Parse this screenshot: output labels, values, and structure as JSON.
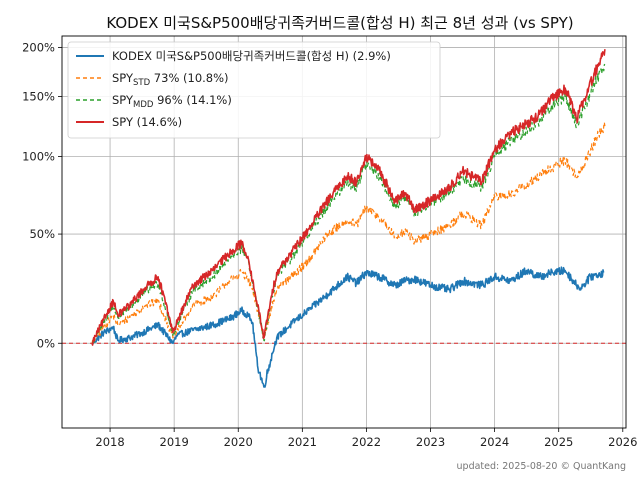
{
  "chart_data": {
    "type": "line",
    "title": "KODEX 미국S&P500배당귀족커버드콜(합성 H) 최근 8년 성과 (vs SPY)",
    "xlabel": "",
    "ylabel": "",
    "yscale": "log(1+r)",
    "grid": true,
    "legend_position": "top-left",
    "x_ticks": [
      "2018",
      "2019",
      "2020",
      "2021",
      "2022",
      "2023",
      "2024",
      "2025",
      "2026"
    ],
    "y_ticks": [
      {
        "value": 0,
        "label": "0%"
      },
      {
        "value": 50,
        "label": "50%"
      },
      {
        "value": 100,
        "label": "100%"
      },
      {
        "value": 150,
        "label": "150%"
      },
      {
        "value": 200,
        "label": "200%"
      }
    ],
    "xlim": [
      2017.25,
      2026.05
    ],
    "ylim": [
      -27,
      213
    ],
    "zero_line": {
      "value": 0,
      "color": "#d62728",
      "style": "dashed"
    },
    "series": [
      {
        "name": "KODEX 미국S&P500배당귀족커버드콜(합성 H) (2.9%)",
        "name_parts": {
          "main": "KODEX 미국S&P500배당귀족커버드콜(합성 H) (2.9%)",
          "sub": "",
          "rest": ""
        },
        "color": "#1f77b4",
        "dash": "solid",
        "width": 1.6,
        "x": [
          2017.72,
          2017.9,
          2018.05,
          2018.12,
          2018.3,
          2018.5,
          2018.75,
          2018.98,
          2019.05,
          2019.3,
          2019.6,
          2019.9,
          2020.05,
          2020.15,
          2020.22,
          2020.3,
          2020.4,
          2020.6,
          2020.9,
          2021.1,
          2021.4,
          2021.7,
          2021.85,
          2021.99,
          2022.2,
          2022.45,
          2022.6,
          2022.75,
          2023.0,
          2023.3,
          2023.5,
          2023.8,
          2024.0,
          2024.25,
          2024.5,
          2024.7,
          2024.9,
          2025.1,
          2025.28,
          2025.35,
          2025.5,
          2025.7
        ],
        "y": [
          0,
          4,
          6,
          1,
          2,
          4,
          7,
          0,
          3,
          5,
          7,
          10,
          13,
          11,
          8,
          -8,
          -15,
          2,
          9,
          13,
          20,
          28,
          25,
          30,
          28,
          24,
          26,
          27,
          24,
          22,
          26,
          24,
          28,
          26,
          31,
          28,
          30,
          31,
          24,
          23,
          28,
          30
        ]
      },
      {
        "name": "SPYSTD 73% (10.8%)",
        "name_parts": {
          "main": "SPY",
          "sub": "STD",
          "rest": " 73% (10.8%)"
        },
        "color": "#ff7f0e",
        "dash": "4,3",
        "width": 1.2,
        "x": [
          2017.72,
          2017.9,
          2018.05,
          2018.12,
          2018.3,
          2018.55,
          2018.75,
          2018.98,
          2019.3,
          2019.6,
          2019.9,
          2020.05,
          2020.15,
          2020.22,
          2020.4,
          2020.6,
          2020.9,
          2021.1,
          2021.4,
          2021.7,
          2021.85,
          2021.99,
          2022.2,
          2022.45,
          2022.6,
          2022.75,
          2023.0,
          2023.3,
          2023.5,
          2023.8,
          2024.0,
          2024.25,
          2024.5,
          2024.7,
          2024.9,
          2025.1,
          2025.28,
          2025.4,
          2025.6,
          2025.72
        ],
        "y": [
          0,
          6,
          11,
          7,
          10,
          15,
          17,
          2,
          15,
          19,
          27,
          30,
          27,
          22,
          2,
          22,
          30,
          36,
          50,
          58,
          55,
          65,
          60,
          48,
          52,
          46,
          50,
          55,
          62,
          55,
          72,
          74,
          80,
          86,
          92,
          98,
          85,
          95,
          115,
          124
        ]
      },
      {
        "name": "SPYMDD 96% (14.1%)",
        "name_parts": {
          "main": "SPY",
          "sub": "MDD",
          "rest": " 96% (14.1%)"
        },
        "color": "#2ca02c",
        "dash": "4,3",
        "width": 1.2,
        "x": [
          2017.72,
          2017.9,
          2018.05,
          2018.12,
          2018.3,
          2018.55,
          2018.75,
          2018.98,
          2019.3,
          2019.6,
          2019.9,
          2020.05,
          2020.15,
          2020.22,
          2020.4,
          2020.6,
          2020.9,
          2021.1,
          2021.4,
          2021.7,
          2021.85,
          2021.99,
          2022.2,
          2022.45,
          2022.6,
          2022.75,
          2023.0,
          2023.3,
          2023.5,
          2023.8,
          2024.0,
          2024.25,
          2024.5,
          2024.7,
          2024.9,
          2025.1,
          2025.28,
          2025.4,
          2025.6,
          2025.72
        ],
        "y": [
          0,
          8,
          15,
          10,
          14,
          21,
          25,
          3,
          22,
          28,
          38,
          42,
          36,
          25,
          1,
          28,
          40,
          50,
          67,
          82,
          78,
          95,
          86,
          66,
          72,
          62,
          68,
          75,
          85,
          78,
          100,
          112,
          120,
          128,
          142,
          150,
          125,
          140,
          168,
          182
        ]
      },
      {
        "name": "SPY (14.6%)",
        "name_parts": {
          "main": "SPY (14.6%)",
          "sub": "",
          "rest": ""
        },
        "color": "#d62728",
        "dash": "solid",
        "width": 1.6,
        "x": [
          2017.72,
          2017.9,
          2018.05,
          2018.12,
          2018.3,
          2018.55,
          2018.75,
          2018.98,
          2019.3,
          2019.6,
          2019.9,
          2020.05,
          2020.15,
          2020.22,
          2020.4,
          2020.6,
          2020.9,
          2021.1,
          2021.4,
          2021.7,
          2021.85,
          2021.99,
          2022.2,
          2022.45,
          2022.6,
          2022.75,
          2023.0,
          2023.3,
          2023.5,
          2023.8,
          2024.0,
          2024.25,
          2024.5,
          2024.7,
          2024.9,
          2025.1,
          2025.28,
          2025.4,
          2025.6,
          2025.72
        ],
        "y": [
          0,
          9,
          17,
          11,
          15,
          23,
          28,
          4,
          24,
          31,
          41,
          45,
          38,
          26,
          2,
          30,
          43,
          53,
          70,
          86,
          82,
          100,
          90,
          69,
          75,
          64,
          70,
          78,
          90,
          82,
          105,
          118,
          126,
          134,
          148,
          158,
          130,
          148,
          178,
          198
        ]
      }
    ]
  },
  "footer": {
    "text": "updated: 2025-08-20 © QuantKang"
  }
}
